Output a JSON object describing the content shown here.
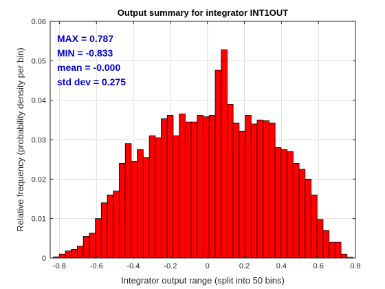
{
  "chart_data": {
    "type": "bar",
    "title": "Output summary for integrator INT1OUT",
    "xlabel": "Integrator output range (split into 50 bins)",
    "ylabel": "Relative frequency (probability density per bin)",
    "xlim": [
      -0.85,
      0.8
    ],
    "ylim": [
      0,
      0.06
    ],
    "xticks": [
      "-0.8",
      "-0.6",
      "-0.4",
      "-0.2",
      "0",
      "0.2",
      "0.4",
      "0.6",
      "0.8"
    ],
    "yticks": [
      "0",
      "0.01",
      "0.02",
      "0.03",
      "0.04",
      "0.05",
      "0.06"
    ],
    "grid": true,
    "bar_color": "#ff0000",
    "bar_edge_color": "#000000",
    "bin_edges": [
      -0.833,
      0.787
    ],
    "values": [
      0.0003,
      0.001,
      0.0018,
      0.0022,
      0.003,
      0.0055,
      0.0063,
      0.01,
      0.014,
      0.016,
      0.017,
      0.024,
      0.029,
      0.0245,
      0.0275,
      0.0255,
      0.031,
      0.0305,
      0.0353,
      0.0362,
      0.031,
      0.0365,
      0.0345,
      0.0345,
      0.0362,
      0.0358,
      0.0362,
      0.0476,
      0.0528,
      0.039,
      0.0342,
      0.0322,
      0.0362,
      0.034,
      0.035,
      0.0348,
      0.0342,
      0.028,
      0.0275,
      0.027,
      0.024,
      0.0225,
      0.02,
      0.016,
      0.0098,
      0.007,
      0.004,
      0.004,
      0.001,
      0.0002
    ],
    "stats": [
      {
        "label": "MAX = 0.787",
        "color": "#0000cc"
      },
      {
        "label": "MIN = -0.833",
        "color": "#0000cc"
      },
      {
        "label": "mean = -0.000",
        "color": "#0000cc"
      },
      {
        "label": "std dev = 0.275",
        "color": "#0000cc"
      }
    ]
  }
}
